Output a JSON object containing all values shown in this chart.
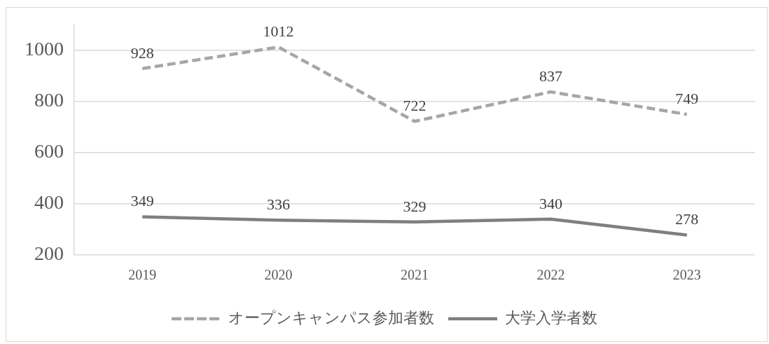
{
  "chart_data": {
    "type": "line",
    "categories": [
      "2019",
      "2020",
      "2021",
      "2022",
      "2023"
    ],
    "series": [
      {
        "name": "オープンキャンパス参加者数",
        "color": "#a6a6a6",
        "line_style": "dashed",
        "values": [
          928,
          1012,
          722,
          837,
          749
        ]
      },
      {
        "name": "大学入学者数",
        "color": "#7f7f7f",
        "line_style": "solid",
        "values": [
          349,
          336,
          329,
          340,
          278
        ]
      }
    ],
    "ylim": [
      200,
      1100
    ],
    "yticks": [
      200,
      400,
      600,
      800,
      1000
    ],
    "grid": "y",
    "legend": "bottom",
    "marker": "none",
    "data_labels": true
  }
}
